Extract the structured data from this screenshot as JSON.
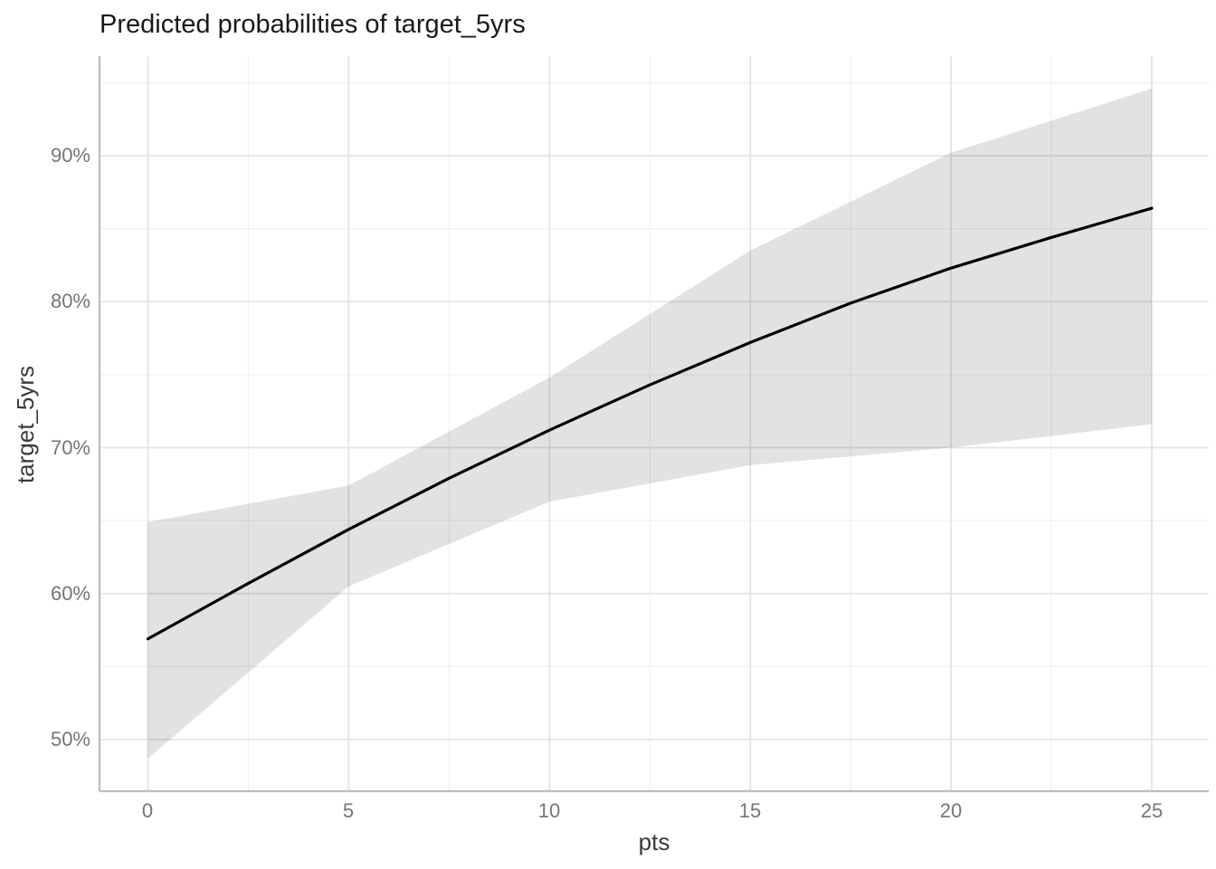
{
  "chart_data": {
    "type": "line",
    "title": "Predicted probabilities of target_5yrs",
    "xlabel": "pts",
    "ylabel": "target_5yrs",
    "x_tick_labels": [
      "0",
      "5",
      "10",
      "15",
      "20",
      "25"
    ],
    "y_tick_labels": [
      "50%",
      "60%",
      "70%",
      "80%",
      "90%"
    ],
    "x_tick_values": [
      0,
      5,
      10,
      15,
      20,
      25
    ],
    "y_tick_values": [
      50,
      60,
      70,
      80,
      90
    ],
    "x_minor_values": [
      2.5,
      7.5,
      12.5,
      17.5,
      22.5
    ],
    "y_minor_values": [
      55,
      65,
      75,
      85,
      95
    ],
    "xlim": [
      -1.25,
      26.25
    ],
    "ylim": [
      46.5,
      96.9
    ],
    "y_unit": "percent",
    "grid": "major-and-minor",
    "legend": "none",
    "series": [
      {
        "name": "predicted-probability-line",
        "type": "line",
        "color": "#000000",
        "x": [
          0,
          2.5,
          5,
          7.5,
          10,
          12.5,
          15,
          17.5,
          20,
          22.5,
          25
        ],
        "y": [
          56.9,
          60.7,
          64.4,
          67.9,
          71.2,
          74.3,
          77.2,
          79.9,
          82.3,
          84.4,
          86.4
        ]
      }
    ],
    "ribbon": {
      "name": "confidence-interval-ribbon",
      "fill": "#000000",
      "fill_opacity": 0.115,
      "x": [
        0,
        5,
        10,
        15,
        20,
        25
      ],
      "upper": [
        64.9,
        67.4,
        74.8,
        83.5,
        90.2,
        94.6
      ],
      "lower": [
        48.7,
        60.5,
        66.3,
        68.8,
        70.0,
        71.6
      ]
    },
    "colors": {
      "major_grid": "#e4e4e4",
      "minor_grid": "#f0f0f0",
      "axis_line": "#bdbdbd",
      "tick_text": "#757575",
      "axis_title_text": "#3a3a3a",
      "title_text": "#1a1a1a"
    }
  }
}
